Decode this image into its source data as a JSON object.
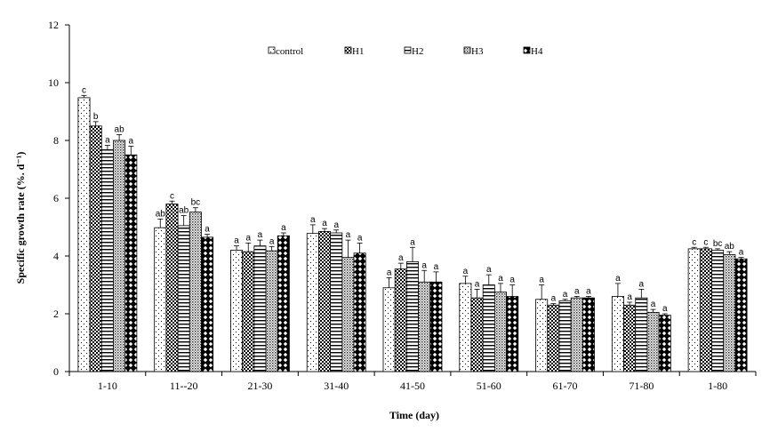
{
  "chart_data": {
    "type": "bar",
    "title": "",
    "xlabel": "Time (day)",
    "ylabel": "Specific growth rate (%. d⁻¹)",
    "ylim": [
      0,
      12
    ],
    "yticks": [
      "0",
      "2",
      "4",
      "6",
      "8",
      "10",
      "12"
    ],
    "grid": false,
    "legend_position": "top",
    "categories": [
      "1-10",
      "11--20",
      "21-30",
      "31-40",
      "41-50",
      "51-60",
      "61-70",
      "71-80",
      "1-80"
    ],
    "series": [
      {
        "name": "control",
        "pattern": "dots-sparse",
        "values": [
          9.48,
          4.98,
          4.2,
          4.78,
          2.9,
          3.05,
          2.5,
          2.6,
          4.25
        ],
        "errors": [
          0.08,
          0.3,
          0.15,
          0.3,
          0.35,
          0.25,
          0.5,
          0.45,
          0.05
        ],
        "labels": [
          "c",
          "ab",
          "a",
          "a",
          "a",
          "a",
          "a",
          "a",
          "c"
        ]
      },
      {
        "name": "H1",
        "pattern": "checker",
        "values": [
          8.5,
          5.8,
          4.15,
          4.85,
          3.55,
          2.55,
          2.3,
          2.3,
          4.25
        ],
        "errors": [
          0.15,
          0.1,
          0.3,
          0.1,
          0.2,
          0.3,
          0.05,
          0.1,
          0.05
        ],
        "labels": [
          "b",
          "c",
          "a",
          "a",
          "a",
          "a",
          "a",
          "a",
          "c"
        ]
      },
      {
        "name": "H2",
        "pattern": "hlines",
        "values": [
          7.68,
          5.05,
          4.35,
          4.8,
          3.8,
          3.0,
          2.45,
          2.55,
          4.2
        ],
        "errors": [
          0.15,
          0.35,
          0.2,
          0.1,
          0.5,
          0.35,
          0.05,
          0.3,
          0.05
        ],
        "labels": [
          "a",
          "ab",
          "a",
          "a",
          "a",
          "a",
          "a",
          "a",
          "bc"
        ]
      },
      {
        "name": "H3",
        "pattern": "dense-dots",
        "values": [
          8.0,
          5.52,
          4.18,
          3.95,
          3.1,
          2.75,
          2.55,
          2.05,
          4.05
        ],
        "errors": [
          0.2,
          0.15,
          0.15,
          0.6,
          0.4,
          0.3,
          0.05,
          0.1,
          0.1
        ],
        "labels": [
          "ab",
          "bc",
          "a",
          "a",
          "a",
          "a",
          "a",
          "a",
          "ab"
        ]
      },
      {
        "name": "H4",
        "pattern": "diamonds",
        "values": [
          7.5,
          4.65,
          4.7,
          4.1,
          3.1,
          2.6,
          2.55,
          1.95,
          3.9
        ],
        "errors": [
          0.3,
          0.1,
          0.1,
          0.35,
          0.35,
          0.4,
          0.05,
          0.05,
          0.05
        ],
        "labels": [
          "a",
          "a",
          "a",
          "a",
          "a",
          "a",
          "a",
          "a",
          "a"
        ]
      }
    ]
  }
}
